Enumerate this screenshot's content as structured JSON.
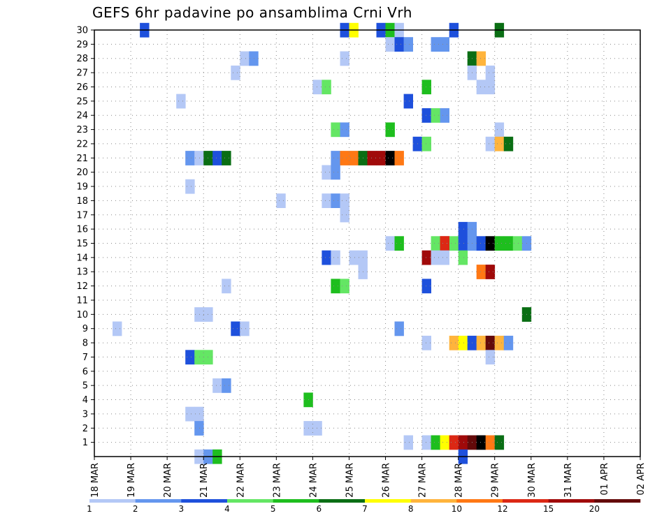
{
  "title": "GEFS 6hr padavine po ansamblima Crni Vrh",
  "chart_data": {
    "type": "heatmap",
    "title": "GEFS 6hr padavine po ansamblima Crni Vrh",
    "xlabel": "",
    "ylabel": "",
    "x_ticks": [
      "18 MAR",
      "19 MAR",
      "20 MAR",
      "21 MAR",
      "22 MAR",
      "23 MAR",
      "24 MAR",
      "25 MAR",
      "26 MAR",
      "27 MAR",
      "28 MAR",
      "29 MAR",
      "30 MAR",
      "31 MAR",
      "01 APR",
      "02 APR"
    ],
    "y_ticks": [
      1,
      2,
      3,
      4,
      5,
      6,
      7,
      8,
      9,
      10,
      11,
      12,
      13,
      14,
      15,
      16,
      17,
      18,
      19,
      20,
      21,
      22,
      23,
      24,
      25,
      26,
      27,
      28,
      29,
      30
    ],
    "y_range": [
      0,
      30
    ],
    "x_range_days": [
      0,
      15
    ],
    "grid": true,
    "colorbar": {
      "position": "bottom",
      "labels": [
        "1",
        "2",
        "3",
        "4",
        "5",
        "6",
        "7",
        "8",
        "10",
        "12",
        "15",
        "20"
      ],
      "colors": [
        "#b4c8f6",
        "#6496ee",
        "#1e50dc",
        "#64e664",
        "#1ebe1e",
        "#0a6e14",
        "#ffff00",
        "#ffb43c",
        "#ff7814",
        "#dc2814",
        "#a00a0a",
        "#640a0a"
      ]
    },
    "cells": [
      {
        "m": 30,
        "s": [
          [
            5,
            3
          ]
        ]
      },
      {
        "m": 30,
        "s": [
          [
            27,
            3
          ],
          [
            28,
            7
          ]
        ]
      },
      {
        "m": 30,
        "s": [
          [
            31,
            3
          ],
          [
            32,
            5
          ],
          [
            33,
            1
          ]
        ]
      },
      {
        "m": 30,
        "s": [
          [
            39,
            3
          ],
          [
            44,
            6
          ]
        ]
      },
      {
        "m": 29,
        "s": [
          [
            32,
            1
          ],
          [
            33,
            3
          ],
          [
            34,
            2
          ],
          [
            37,
            2
          ],
          [
            38,
            2
          ]
        ]
      },
      {
        "m": 28,
        "s": [
          [
            16,
            1
          ],
          [
            17,
            2
          ],
          [
            27,
            1
          ],
          [
            41,
            6
          ],
          [
            42,
            8
          ]
        ]
      },
      {
        "m": 27,
        "s": [
          [
            15,
            1
          ],
          [
            41,
            1
          ],
          [
            43,
            1
          ]
        ]
      },
      {
        "m": 26,
        "s": [
          [
            24,
            1
          ],
          [
            25,
            4
          ],
          [
            36,
            5
          ],
          [
            42,
            1
          ],
          [
            43,
            1
          ]
        ]
      },
      {
        "m": 25,
        "s": [
          [
            9,
            1
          ],
          [
            34,
            3
          ]
        ]
      },
      {
        "m": 24,
        "s": [
          [
            36,
            3
          ],
          [
            37,
            4
          ],
          [
            38,
            2
          ]
        ]
      },
      {
        "m": 23,
        "s": [
          [
            26,
            4
          ],
          [
            27,
            2
          ],
          [
            32,
            5
          ],
          [
            44,
            1
          ]
        ]
      },
      {
        "m": 22,
        "s": [
          [
            35,
            3
          ],
          [
            36,
            4
          ],
          [
            43,
            1
          ],
          [
            44,
            8
          ],
          [
            45,
            6
          ]
        ]
      },
      {
        "m": 21,
        "s": [
          [
            10,
            2
          ],
          [
            11,
            1
          ],
          [
            12,
            6
          ],
          [
            13,
            3
          ],
          [
            14,
            6
          ],
          [
            26,
            2
          ],
          [
            27,
            9
          ],
          [
            28,
            9
          ],
          [
            29,
            6
          ],
          [
            30,
            11
          ],
          [
            31,
            11
          ],
          [
            32,
            13
          ],
          [
            33,
            9
          ]
        ]
      },
      {
        "m": 20,
        "s": [
          [
            25,
            1
          ],
          [
            26,
            2
          ]
        ]
      },
      {
        "m": 19,
        "s": [
          [
            10,
            1
          ]
        ]
      },
      {
        "m": 18,
        "s": [
          [
            20,
            1
          ],
          [
            25,
            1
          ],
          [
            26,
            2
          ],
          [
            27,
            1
          ]
        ]
      },
      {
        "m": 17,
        "s": [
          [
            27,
            1
          ]
        ]
      },
      {
        "m": 16,
        "s": [
          [
            40,
            3
          ],
          [
            41,
            2
          ]
        ]
      },
      {
        "m": 15,
        "s": [
          [
            32,
            1
          ],
          [
            33,
            5
          ],
          [
            37,
            4
          ],
          [
            38,
            10
          ],
          [
            39,
            4
          ],
          [
            40,
            3
          ],
          [
            41,
            2
          ],
          [
            42,
            3
          ],
          [
            43,
            13
          ],
          [
            44,
            5
          ],
          [
            45,
            5
          ]
        ]
      },
      {
        "m": 15,
        "s": [
          [
            38,
            10
          ],
          [
            46,
            4
          ],
          [
            47,
            2
          ]
        ]
      },
      {
        "m": 14,
        "s": [
          [
            25,
            3
          ],
          [
            26,
            1
          ],
          [
            28,
            1
          ],
          [
            29,
            1
          ],
          [
            36,
            11
          ],
          [
            37,
            1
          ],
          [
            38,
            1
          ],
          [
            40,
            4
          ]
        ]
      },
      {
        "m": 13,
        "s": [
          [
            29,
            1
          ],
          [
            42,
            9
          ],
          [
            43,
            11
          ]
        ]
      },
      {
        "m": 12,
        "s": [
          [
            14,
            1
          ],
          [
            26,
            5
          ],
          [
            27,
            4
          ],
          [
            36,
            3
          ]
        ]
      },
      {
        "m": 10,
        "s": [
          [
            11,
            1
          ],
          [
            12,
            1
          ],
          [
            47,
            6
          ]
        ]
      },
      {
        "m": 9,
        "s": [
          [
            2,
            1
          ],
          [
            15,
            3
          ],
          [
            16,
            1
          ],
          [
            33,
            2
          ]
        ]
      },
      {
        "m": 8,
        "s": [
          [
            36,
            1
          ],
          [
            39,
            8
          ],
          [
            40,
            7
          ],
          [
            41,
            3
          ],
          [
            42,
            8
          ],
          [
            43,
            12
          ],
          [
            44,
            8
          ],
          [
            45,
            2
          ]
        ]
      },
      {
        "m": 7,
        "s": [
          [
            10,
            3
          ],
          [
            11,
            4
          ],
          [
            12,
            4
          ],
          [
            43,
            1
          ]
        ]
      },
      {
        "m": 5,
        "s": [
          [
            13,
            1
          ],
          [
            14,
            2
          ]
        ]
      },
      {
        "m": 4,
        "s": [
          [
            23,
            5
          ]
        ]
      },
      {
        "m": 3,
        "s": [
          [
            10,
            1
          ],
          [
            11,
            1
          ]
        ]
      },
      {
        "m": 2,
        "s": [
          [
            11,
            2
          ],
          [
            23,
            1
          ],
          [
            24,
            1
          ]
        ]
      },
      {
        "m": 1,
        "s": [
          [
            34,
            1
          ],
          [
            36,
            1
          ],
          [
            37,
            5
          ],
          [
            38,
            7
          ],
          [
            39,
            10
          ],
          [
            40,
            11
          ],
          [
            41,
            12
          ],
          [
            42,
            13
          ],
          [
            43,
            9
          ],
          [
            44,
            6
          ]
        ]
      },
      {
        "m": 0,
        "s": [
          [
            11,
            1
          ],
          [
            12,
            2
          ],
          [
            13,
            5
          ],
          [
            40,
            3
          ]
        ]
      }
    ]
  },
  "colors": {
    "frame": "#000000",
    "grid": "#888888"
  }
}
